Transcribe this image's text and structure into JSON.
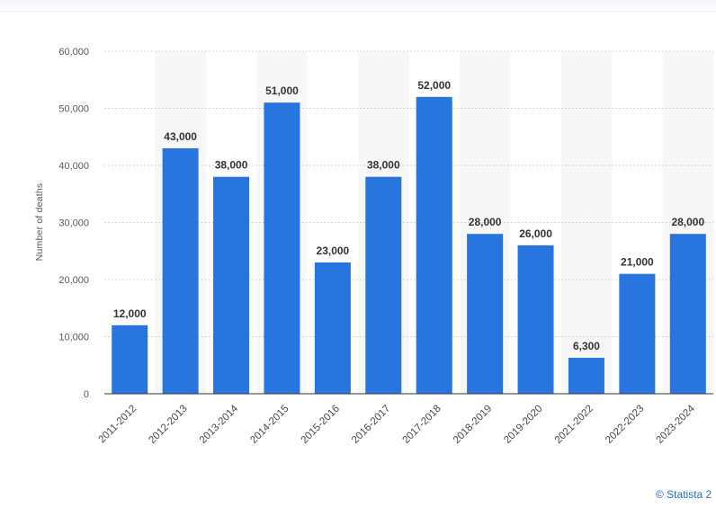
{
  "credit": "© Statista 2",
  "chart_data": {
    "type": "bar",
    "title": "",
    "xlabel": "",
    "ylabel": "Number of deaths",
    "ylim": [
      0,
      60000
    ],
    "yticks": [
      0,
      10000,
      20000,
      30000,
      40000,
      50000,
      60000
    ],
    "ytick_labels": [
      "0",
      "10,000",
      "20,000",
      "30,000",
      "40,000",
      "50,000",
      "60,000"
    ],
    "categories": [
      "2011-2012",
      "2012-2013",
      "2013-2014",
      "2014-2015",
      "2015-2016",
      "2016-2017",
      "2017-2018",
      "2018-2019",
      "2019-2020",
      "2021-2022",
      "2022-2023",
      "2023-2024"
    ],
    "values": [
      12000,
      43000,
      38000,
      51000,
      23000,
      38000,
      52000,
      28000,
      26000,
      6300,
      21000,
      28000
    ],
    "value_labels": [
      "12,000",
      "43,000",
      "38,000",
      "51,000",
      "23,000",
      "38,000",
      "52,000",
      "28,000",
      "26,000",
      "6,300",
      "21,000",
      "28,000"
    ],
    "bar_color": "#2875e0",
    "band_color": "#f7f7f7",
    "grid": true
  }
}
